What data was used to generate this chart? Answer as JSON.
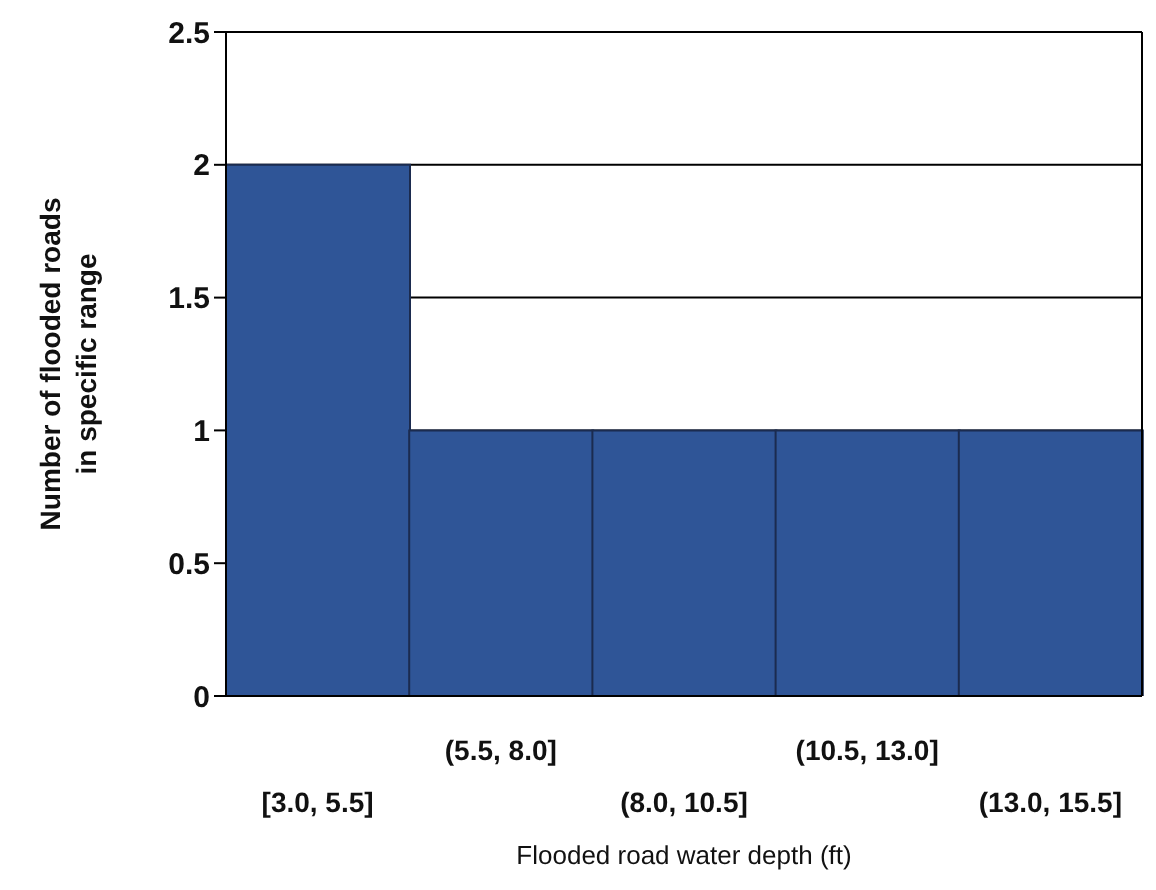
{
  "chart_data": {
    "type": "bar",
    "xlabel": "Flooded road water depth (ft)",
    "ylabel": "Number of flooded roads in specific range",
    "categories": [
      "[3.0, 5.5]",
      "(5.5, 8.0]",
      "(8.0, 10.5]",
      "(10.5, 13.0]",
      "(13.0, 15.5]"
    ],
    "values": [
      2,
      1,
      1,
      1,
      1
    ],
    "color": "#2f5597",
    "ylim": [
      0,
      2.5
    ],
    "yticks": [
      0,
      0.5,
      1,
      1.5,
      2,
      2.5
    ],
    "grid": "y"
  }
}
